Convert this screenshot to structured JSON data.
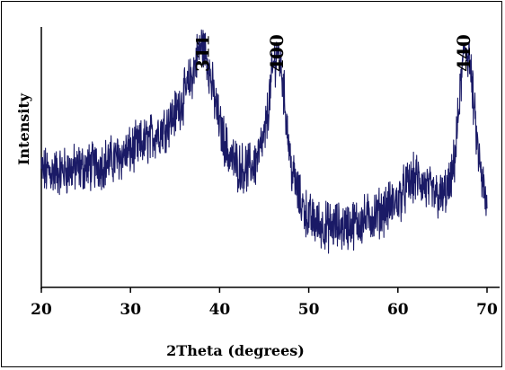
{
  "chart_data": {
    "type": "line",
    "title": "",
    "xlabel": "2Theta (degrees)",
    "ylabel": "Intensity",
    "xlim": [
      20,
      70
    ],
    "x_ticks": [
      "20",
      "30",
      "40",
      "50",
      "60",
      "70"
    ],
    "y_ticks": [],
    "grid": false,
    "legend": "none",
    "line_color": "#1a1a66",
    "series": [
      {
        "name": "",
        "x": [
          20,
          22,
          24,
          26,
          28,
          30,
          32,
          34,
          35,
          36,
          37,
          37.5,
          38,
          38.5,
          39,
          40,
          41,
          42,
          43,
          44,
          45,
          45.5,
          46,
          46.5,
          47,
          47.5,
          48,
          49,
          50,
          51,
          52,
          54,
          56,
          58,
          60,
          61,
          62,
          63,
          64,
          65,
          66,
          66.5,
          67,
          67.5,
          68,
          68.5,
          69,
          69.5,
          70
        ],
        "y": [
          22,
          22,
          23,
          24,
          26,
          29,
          33,
          38,
          42,
          48,
          56,
          62,
          66,
          63,
          54,
          38,
          28,
          24,
          23,
          25,
          33,
          45,
          58,
          64,
          56,
          40,
          24,
          12,
          6,
          4,
          3,
          3,
          5,
          8,
          12,
          17,
          20,
          17,
          14,
          13,
          18,
          30,
          50,
          65,
          62,
          45,
          28,
          18,
          8
        ]
      }
    ],
    "annotations": [
      {
        "text": "311",
        "x": 38.2
      },
      {
        "text": "400",
        "x": 46.5
      },
      {
        "text": "440",
        "x": 67.5
      }
    ]
  }
}
